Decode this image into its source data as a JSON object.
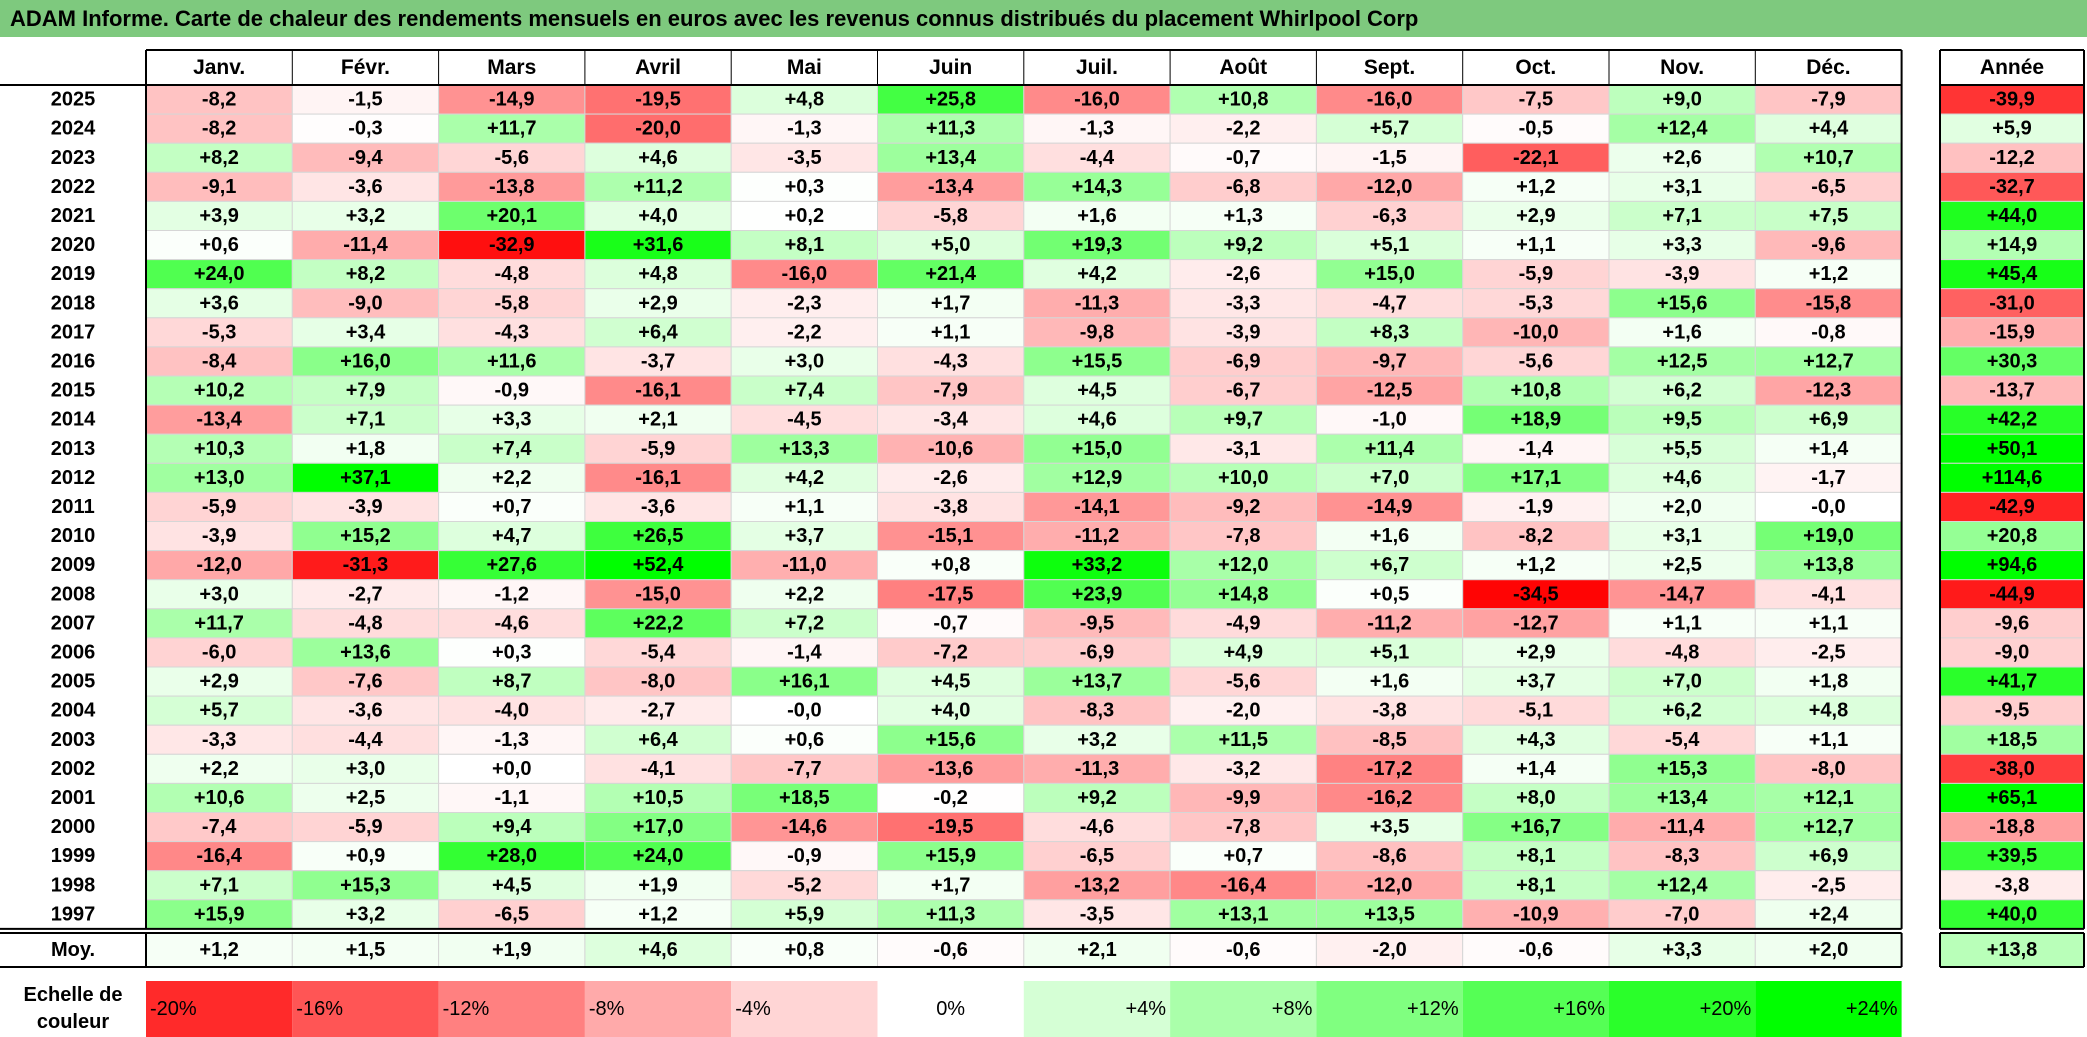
{
  "title": "ADAM Informe. Carte de chaleur des rendements mensuels en euros avec les revenus connus distribués du placement Whirlpool Corp",
  "chart_data": {
    "type": "heatmap",
    "months": [
      "Janv.",
      "Févr.",
      "Mars",
      "Avril",
      "Mai",
      "Juin",
      "Juil.",
      "Août",
      "Sept.",
      "Oct.",
      "Nov.",
      "Déc."
    ],
    "year_header": "Année",
    "years": [
      "2025",
      "2024",
      "2023",
      "2022",
      "2021",
      "2020",
      "2019",
      "2018",
      "2017",
      "2016",
      "2015",
      "2014",
      "2013",
      "2012",
      "2011",
      "2010",
      "2009",
      "2008",
      "2007",
      "2006",
      "2005",
      "2004",
      "2003",
      "2002",
      "2001",
      "2000",
      "1999",
      "1998",
      "1997"
    ],
    "values": [
      [
        "-8,2",
        "-1,5",
        "-14,9",
        "-19,5",
        "+4,8",
        "+25,8",
        "-16,0",
        "+10,8",
        "-16,0",
        "-7,5",
        "+9,0",
        "-7,9"
      ],
      [
        "-8,2",
        "-0,3",
        "+11,7",
        "-20,0",
        "-1,3",
        "+11,3",
        "-1,3",
        "-2,2",
        "+5,7",
        "-0,5",
        "+12,4",
        "+4,4"
      ],
      [
        "+8,2",
        "-9,4",
        "-5,6",
        "+4,6",
        "-3,5",
        "+13,4",
        "-4,4",
        "-0,7",
        "-1,5",
        "-22,1",
        "+2,6",
        "+10,7"
      ],
      [
        "-9,1",
        "-3,6",
        "-13,8",
        "+11,2",
        "+0,3",
        "-13,4",
        "+14,3",
        "-6,8",
        "-12,0",
        "+1,2",
        "+3,1",
        "-6,5"
      ],
      [
        "+3,9",
        "+3,2",
        "+20,1",
        "+4,0",
        "+0,2",
        "-5,8",
        "+1,6",
        "+1,3",
        "-6,3",
        "+2,9",
        "+7,1",
        "+7,5"
      ],
      [
        "+0,6",
        "-11,4",
        "-32,9",
        "+31,6",
        "+8,1",
        "+5,0",
        "+19,3",
        "+9,2",
        "+5,1",
        "+1,1",
        "+3,3",
        "-9,6"
      ],
      [
        "+24,0",
        "+8,2",
        "-4,8",
        "+4,8",
        "-16,0",
        "+21,4",
        "+4,2",
        "-2,6",
        "+15,0",
        "-5,9",
        "-3,9",
        "+1,2"
      ],
      [
        "+3,6",
        "-9,0",
        "-5,8",
        "+2,9",
        "-2,3",
        "+1,7",
        "-11,3",
        "-3,3",
        "-4,7",
        "-5,3",
        "+15,6",
        "-15,8"
      ],
      [
        "-5,3",
        "+3,4",
        "-4,3",
        "+6,4",
        "-2,2",
        "+1,1",
        "-9,8",
        "-3,9",
        "+8,3",
        "-10,0",
        "+1,6",
        "-0,8"
      ],
      [
        "-8,4",
        "+16,0",
        "+11,6",
        "-3,7",
        "+3,0",
        "-4,3",
        "+15,5",
        "-6,9",
        "-9,7",
        "-5,6",
        "+12,5",
        "+12,7"
      ],
      [
        "+10,2",
        "+7,9",
        "-0,9",
        "-16,1",
        "+7,4",
        "-7,9",
        "+4,5",
        "-6,7",
        "-12,5",
        "+10,8",
        "+6,2",
        "-12,3"
      ],
      [
        "-13,4",
        "+7,1",
        "+3,3",
        "+2,1",
        "-4,5",
        "-3,4",
        "+4,6",
        "+9,7",
        "-1,0",
        "+18,9",
        "+9,5",
        "+6,9"
      ],
      [
        "+10,3",
        "+1,8",
        "+7,4",
        "-5,9",
        "+13,3",
        "-10,6",
        "+15,0",
        "-3,1",
        "+11,4",
        "-1,4",
        "+5,5",
        "+1,4"
      ],
      [
        "+13,0",
        "+37,1",
        "+2,2",
        "-16,1",
        "+4,2",
        "-2,6",
        "+12,9",
        "+10,0",
        "+7,0",
        "+17,1",
        "+4,6",
        "-1,7"
      ],
      [
        "-5,9",
        "-3,9",
        "+0,7",
        "-3,6",
        "+1,1",
        "-3,8",
        "-14,1",
        "-9,2",
        "-14,9",
        "-1,9",
        "+2,0",
        "-0,0"
      ],
      [
        "-3,9",
        "+15,2",
        "+4,7",
        "+26,5",
        "+3,7",
        "-15,1",
        "-11,2",
        "-7,8",
        "+1,6",
        "-8,2",
        "+3,1",
        "+19,0"
      ],
      [
        "-12,0",
        "-31,3",
        "+27,6",
        "+52,4",
        "-11,0",
        "+0,8",
        "+33,2",
        "+12,0",
        "+6,7",
        "+1,2",
        "+2,5",
        "+13,8"
      ],
      [
        "+3,0",
        "-2,7",
        "-1,2",
        "-15,0",
        "+2,2",
        "-17,5",
        "+23,9",
        "+14,8",
        "+0,5",
        "-34,5",
        "-14,7",
        "-4,1"
      ],
      [
        "+11,7",
        "-4,8",
        "-4,6",
        "+22,2",
        "+7,2",
        "-0,7",
        "-9,5",
        "-4,9",
        "-11,2",
        "-12,7",
        "+1,1",
        "+1,1"
      ],
      [
        "-6,0",
        "+13,6",
        "+0,3",
        "-5,4",
        "-1,4",
        "-7,2",
        "-6,9",
        "+4,9",
        "+5,1",
        "+2,9",
        "-4,8",
        "-2,5"
      ],
      [
        "+2,9",
        "-7,6",
        "+8,7",
        "-8,0",
        "+16,1",
        "+4,5",
        "+13,7",
        "-5,6",
        "+1,6",
        "+3,7",
        "+7,0",
        "+1,8"
      ],
      [
        "+5,7",
        "-3,6",
        "-4,0",
        "-2,7",
        "-0,0",
        "+4,0",
        "-8,3",
        "-2,0",
        "-3,8",
        "-5,1",
        "+6,2",
        "+4,8"
      ],
      [
        "-3,3",
        "-4,4",
        "-1,3",
        "+6,4",
        "+0,6",
        "+15,6",
        "+3,2",
        "+11,5",
        "-8,5",
        "+4,3",
        "-5,4",
        "+1,1"
      ],
      [
        "+2,2",
        "+3,0",
        "+0,0",
        "-4,1",
        "-7,7",
        "-13,6",
        "-11,3",
        "-3,2",
        "-17,2",
        "+1,4",
        "+15,3",
        "-8,0"
      ],
      [
        "+10,6",
        "+2,5",
        "-1,1",
        "+10,5",
        "+18,5",
        "-0,2",
        "+9,2",
        "-9,9",
        "-16,2",
        "+8,0",
        "+13,4",
        "+12,1"
      ],
      [
        "-7,4",
        "-5,9",
        "+9,4",
        "+17,0",
        "-14,6",
        "-19,5",
        "-4,6",
        "-7,8",
        "+3,5",
        "+16,7",
        "-11,4",
        "+12,7"
      ],
      [
        "-16,4",
        "+0,9",
        "+28,0",
        "+24,0",
        "-0,9",
        "+15,9",
        "-6,5",
        "+0,7",
        "-8,6",
        "+8,1",
        "-8,3",
        "+6,9"
      ],
      [
        "+7,1",
        "+15,3",
        "+4,5",
        "+1,9",
        "-5,2",
        "+1,7",
        "-13,2",
        "-16,4",
        "-12,0",
        "+8,1",
        "+12,4",
        "-2,5"
      ],
      [
        "+15,9",
        "+3,2",
        "-6,5",
        "+1,2",
        "+5,9",
        "+11,3",
        "-3,5",
        "+13,1",
        "+13,5",
        "-10,9",
        "-7,0",
        "+2,4"
      ]
    ],
    "year_totals": [
      "-39,9",
      "+5,9",
      "-12,2",
      "-32,7",
      "+44,0",
      "+14,9",
      "+45,4",
      "-31,0",
      "-15,9",
      "+30,3",
      "-13,7",
      "+42,2",
      "+50,1",
      "+114,6",
      "-42,9",
      "+20,8",
      "+94,6",
      "-44,9",
      "-9,6",
      "-9,0",
      "+41,7",
      "-9,5",
      "+18,5",
      "-38,0",
      "+65,1",
      "-18,8",
      "+39,5",
      "-3,8",
      "+40,0"
    ],
    "average_label": "Moy.",
    "averages": [
      "+1,2",
      "+1,5",
      "+1,9",
      "+4,6",
      "+0,8",
      "-0,6",
      "+2,1",
      "-0,6",
      "-2,0",
      "-0,6",
      "+3,3",
      "+2,0"
    ],
    "average_total": "+13,8",
    "scale": {
      "label_line1": "Echelle de",
      "label_line2": "couleur",
      "stops": [
        {
          "value": -20,
          "label": "-20%"
        },
        {
          "value": -16,
          "label": "-16%"
        },
        {
          "value": -12,
          "label": "-12%"
        },
        {
          "value": -8,
          "label": "-8%"
        },
        {
          "value": -4,
          "label": "-4%"
        },
        {
          "value": 0,
          "label": "0%"
        },
        {
          "value": 4,
          "label": "+4%"
        },
        {
          "value": 8,
          "label": "+8%"
        },
        {
          "value": 12,
          "label": "+12%"
        },
        {
          "value": 16,
          "label": "+16%"
        },
        {
          "value": 20,
          "label": "+20%"
        },
        {
          "value": 24,
          "label": "+24%"
        }
      ]
    },
    "colors": {
      "negative": "#ff0000",
      "zero": "#ffffff",
      "positive": "#00ff00",
      "title_bar": "#7ec97e"
    }
  }
}
